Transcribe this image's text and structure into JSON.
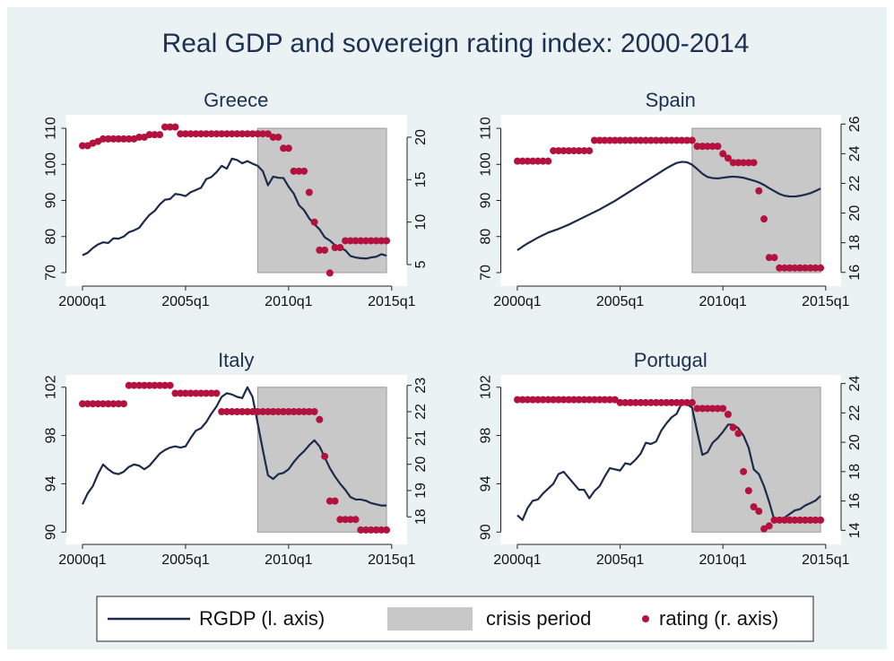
{
  "title": "Real GDP and sovereign rating index: 2000-2014",
  "legend": [
    {
      "name": "RGDP (l. axis)",
      "color": "#1c2b4a"
    },
    {
      "name": "crisis period",
      "color": "#c8c8c8"
    },
    {
      "name": "rating (r. axis)",
      "color": "#b3123f"
    }
  ],
  "chart_data": [
    {
      "type": "line",
      "title": "Greece",
      "x": [
        2000,
        2000.25,
        2000.5,
        2000.75,
        2001,
        2001.25,
        2001.5,
        2001.75,
        2002,
        2002.25,
        2002.5,
        2002.75,
        2003,
        2003.25,
        2003.5,
        2003.75,
        2004,
        2004.25,
        2004.5,
        2004.75,
        2005,
        2005.25,
        2005.5,
        2005.75,
        2006,
        2006.25,
        2006.5,
        2006.75,
        2007,
        2007.25,
        2007.5,
        2007.75,
        2008,
        2008.25,
        2008.5,
        2008.75,
        2009,
        2009.25,
        2009.5,
        2009.75,
        2010,
        2010.25,
        2010.5,
        2010.75,
        2011,
        2011.25,
        2011.5,
        2011.75,
        2012,
        2012.25,
        2012.5,
        2012.75,
        2013,
        2013.25,
        2013.5,
        2013.75,
        2014,
        2014.25,
        2014.5,
        2014.75
      ],
      "series": [
        {
          "values": [
            74.8,
            75.5,
            76.8,
            77.8,
            78.4,
            78.2,
            79.5,
            79.4,
            80.0,
            81.2,
            81.7,
            82.4,
            84.3,
            86.0,
            87.1,
            88.9,
            90.2,
            90.4,
            91.8,
            91.6,
            91.2,
            92.3,
            92.9,
            93.5,
            95.9,
            96.5,
            97.8,
            99.6,
            98.8,
            101.6,
            101.2,
            100.3,
            100.9,
            100.2,
            99.6,
            98.1,
            94.2,
            96.6,
            96.3,
            96.2,
            93.8,
            91.9,
            88.7,
            87.3,
            85.0,
            83.4,
            82.0,
            79.8,
            78.9,
            77.6,
            76.9,
            76.2,
            74.6,
            74.2,
            74.0,
            73.9,
            74.2,
            74.4,
            75.1,
            74.7
          ]
        },
        {
          "type": "scatter",
          "axis": "y2",
          "values": [
            19,
            19,
            19.3,
            19.5,
            19.8,
            19.8,
            19.8,
            19.8,
            19.8,
            19.8,
            19.8,
            20,
            20,
            20.3,
            20.3,
            20.3,
            21.2,
            21.2,
            21.2,
            20.4,
            20.4,
            20.4,
            20.4,
            20.4,
            20.4,
            20.4,
            20.4,
            20.4,
            20.4,
            20.4,
            20.4,
            20.4,
            20.4,
            20.4,
            20.4,
            20.4,
            20.4,
            20,
            20,
            18.7,
            18.7,
            16,
            16,
            16,
            13.5,
            10,
            6.7,
            6.7,
            4,
            7,
            7,
            7.8,
            7.8,
            7.8,
            7.8,
            7.8,
            7.8,
            7.8,
            7.8,
            7.8
          ]
        }
      ],
      "shade": {
        "x": [
          2008.5,
          2014.75
        ],
        "y": [
          70,
          110
        ]
      },
      "xlim": [
        1999.5,
        2015.4
      ],
      "xticks": [
        {
          "value": 2000,
          "label": "2000q1"
        },
        {
          "value": 2005,
          "label": "2005q1"
        },
        {
          "value": 2010,
          "label": "2010q1"
        },
        {
          "value": 2015,
          "label": "2015q1"
        }
      ],
      "ylim": [
        68,
        112
      ],
      "yticks": [
        70,
        80,
        90,
        100,
        110
      ],
      "y2lim": [
        3.2,
        21.9
      ],
      "y2ticks": [
        5,
        10,
        15,
        20
      ]
    },
    {
      "type": "line",
      "title": "Spain",
      "x": [
        2000,
        2000.25,
        2000.5,
        2000.75,
        2001,
        2001.25,
        2001.5,
        2001.75,
        2002,
        2002.25,
        2002.5,
        2002.75,
        2003,
        2003.25,
        2003.5,
        2003.75,
        2004,
        2004.25,
        2004.5,
        2004.75,
        2005,
        2005.25,
        2005.5,
        2005.75,
        2006,
        2006.25,
        2006.5,
        2006.75,
        2007,
        2007.25,
        2007.5,
        2007.75,
        2008,
        2008.25,
        2008.5,
        2008.75,
        2009,
        2009.25,
        2009.5,
        2009.75,
        2010,
        2010.25,
        2010.5,
        2010.75,
        2011,
        2011.25,
        2011.5,
        2011.75,
        2012,
        2012.25,
        2012.5,
        2012.75,
        2013,
        2013.25,
        2013.5,
        2013.75,
        2014,
        2014.25,
        2014.5,
        2014.75
      ],
      "series": [
        {
          "values": [
            76.2,
            77.2,
            78.1,
            78.9,
            79.7,
            80.4,
            81.1,
            81.6,
            82.1,
            82.7,
            83.3,
            84.0,
            84.7,
            85.4,
            86.1,
            86.8,
            87.5,
            88.3,
            89.1,
            89.9,
            90.8,
            91.7,
            92.6,
            93.5,
            94.4,
            95.3,
            96.2,
            97.1,
            98.0,
            98.9,
            99.7,
            100.4,
            100.7,
            100.6,
            99.9,
            98.7,
            97.4,
            96.5,
            96.2,
            96.1,
            96.3,
            96.5,
            96.6,
            96.5,
            96.3,
            95.9,
            95.5,
            95.0,
            94.3,
            93.4,
            92.6,
            91.8,
            91.3,
            91.1,
            91.1,
            91.3,
            91.6,
            92.0,
            92.6,
            93.3
          ]
        },
        {
          "type": "scatter",
          "axis": "y2",
          "values": [
            23.5,
            23.5,
            23.5,
            23.5,
            23.5,
            23.5,
            23.5,
            24.2,
            24.2,
            24.2,
            24.2,
            24.2,
            24.2,
            24.2,
            24.2,
            24.9,
            24.9,
            24.9,
            24.9,
            24.9,
            24.9,
            24.9,
            24.9,
            24.9,
            24.9,
            24.9,
            24.9,
            24.9,
            24.9,
            24.9,
            24.9,
            24.9,
            24.9,
            24.9,
            24.9,
            24.5,
            24.5,
            24.5,
            24.5,
            24.5,
            24.0,
            23.7,
            23.4,
            23.4,
            23.4,
            23.4,
            23.4,
            21.5,
            19.6,
            17,
            17,
            16.3,
            16.3,
            16.3,
            16.3,
            16.3,
            16.3,
            16.3,
            16.3,
            16.3
          ]
        }
      ],
      "shade": {
        "x": [
          2008.5,
          2014.75
        ],
        "y": [
          70,
          110
        ]
      },
      "xlim": [
        1999.5,
        2015.4
      ],
      "xticks": [
        {
          "value": 2000,
          "label": "2000q1"
        },
        {
          "value": 2005,
          "label": "2005q1"
        },
        {
          "value": 2010,
          "label": "2010q1"
        },
        {
          "value": 2015,
          "label": "2015q1"
        }
      ],
      "ylim": [
        68,
        112
      ],
      "yticks": [
        70,
        80,
        90,
        100,
        110
      ],
      "y2lim": [
        15.5,
        26.2
      ],
      "y2ticks": [
        16,
        18,
        20,
        22,
        24,
        26
      ]
    },
    {
      "type": "line",
      "title": "Italy",
      "x": [
        2000,
        2000.25,
        2000.5,
        2000.75,
        2001,
        2001.25,
        2001.5,
        2001.75,
        2002,
        2002.25,
        2002.5,
        2002.75,
        2003,
        2003.25,
        2003.5,
        2003.75,
        2004,
        2004.25,
        2004.5,
        2004.75,
        2005,
        2005.25,
        2005.5,
        2005.75,
        2006,
        2006.25,
        2006.5,
        2006.75,
        2007,
        2007.25,
        2007.5,
        2007.75,
        2008,
        2008.25,
        2008.5,
        2008.75,
        2009,
        2009.25,
        2009.5,
        2009.75,
        2010,
        2010.25,
        2010.5,
        2010.75,
        2011,
        2011.25,
        2011.5,
        2011.75,
        2012,
        2012.25,
        2012.5,
        2012.75,
        2013,
        2013.25,
        2013.5,
        2013.75,
        2014,
        2014.25,
        2014.5,
        2014.75
      ],
      "series": [
        {
          "values": [
            92.3,
            93.2,
            93.8,
            94.8,
            95.6,
            95.2,
            94.9,
            94.8,
            95.0,
            95.4,
            95.6,
            95.5,
            95.2,
            95.5,
            96.0,
            96.5,
            96.8,
            97.0,
            97.1,
            97.0,
            97.1,
            97.8,
            98.4,
            98.6,
            99.1,
            99.8,
            100.4,
            101.2,
            101.5,
            101.4,
            101.2,
            101.1,
            102.0,
            101.2,
            99.0,
            96.8,
            94.7,
            94.4,
            94.8,
            94.9,
            95.2,
            95.8,
            96.3,
            96.7,
            97.2,
            97.6,
            97.1,
            96.2,
            95.3,
            94.6,
            94.0,
            93.5,
            92.9,
            92.7,
            92.7,
            92.6,
            92.4,
            92.3,
            92.2,
            92.2
          ]
        },
        {
          "type": "scatter",
          "axis": "y2",
          "values": [
            22.3,
            22.3,
            22.3,
            22.3,
            22.3,
            22.3,
            22.3,
            22.3,
            22.3,
            23,
            23,
            23,
            23,
            23,
            23,
            23,
            23,
            23,
            22.7,
            22.7,
            22.7,
            22.7,
            22.7,
            22.7,
            22.7,
            22.7,
            22.7,
            22,
            22,
            22,
            22,
            22,
            22,
            22,
            22,
            22,
            22,
            22,
            22,
            22,
            22,
            22,
            22,
            22,
            22,
            22,
            21.7,
            20.3,
            18.6,
            18.6,
            17.9,
            17.9,
            17.9,
            17.9,
            17.5,
            17.5,
            17.5,
            17.5,
            17.5,
            17.5
          ]
        }
      ],
      "shade": {
        "x": [
          2008.5,
          2014.75
        ],
        "y": [
          90,
          102
        ]
      },
      "xlim": [
        1999.5,
        2015.4
      ],
      "xticks": [
        {
          "value": 2000,
          "label": "2000q1"
        },
        {
          "value": 2005,
          "label": "2005q1"
        },
        {
          "value": 2010,
          "label": "2010q1"
        },
        {
          "value": 2015,
          "label": "2015q1"
        }
      ],
      "ylim": [
        89.5,
        102.5
      ],
      "yticks": [
        90,
        94,
        98,
        102
      ],
      "y2lim": [
        17.19,
        23.16
      ],
      "y2ticks": [
        18,
        19,
        20,
        21,
        22,
        23
      ]
    },
    {
      "type": "line",
      "title": "Portugal",
      "x": [
        2000,
        2000.25,
        2000.5,
        2000.75,
        2001,
        2001.25,
        2001.5,
        2001.75,
        2002,
        2002.25,
        2002.5,
        2002.75,
        2003,
        2003.25,
        2003.5,
        2003.75,
        2004,
        2004.25,
        2004.5,
        2004.75,
        2005,
        2005.25,
        2005.5,
        2005.75,
        2006,
        2006.25,
        2006.5,
        2006.75,
        2007,
        2007.25,
        2007.5,
        2007.75,
        2008,
        2008.25,
        2008.5,
        2008.75,
        2009,
        2009.25,
        2009.5,
        2009.75,
        2010,
        2010.25,
        2010.5,
        2010.75,
        2011,
        2011.25,
        2011.5,
        2011.75,
        2012,
        2012.25,
        2012.5,
        2012.75,
        2013,
        2013.25,
        2013.5,
        2013.75,
        2014,
        2014.25,
        2014.5,
        2014.75
      ],
      "series": [
        {
          "values": [
            91.4,
            91.0,
            92.0,
            92.6,
            92.7,
            93.2,
            93.6,
            94.0,
            94.8,
            95.0,
            94.5,
            94.0,
            93.5,
            93.5,
            92.8,
            93.4,
            93.8,
            94.6,
            95.3,
            95.2,
            95.1,
            95.7,
            95.6,
            96.0,
            96.5,
            97.4,
            97.3,
            97.5,
            98.4,
            99.0,
            99.5,
            99.8,
            100.7,
            100.6,
            100.3,
            98.3,
            96.4,
            96.6,
            97.4,
            97.8,
            98.3,
            98.9,
            98.9,
            98.6,
            98.0,
            97.0,
            95.2,
            94.8,
            93.8,
            92.5,
            91.0,
            91.1,
            91.2,
            91.5,
            91.8,
            91.9,
            92.2,
            92.4,
            92.6,
            93.0
          ]
        },
        {
          "type": "scatter",
          "axis": "y2",
          "values": [
            22.9,
            22.9,
            22.9,
            22.9,
            22.9,
            22.9,
            22.9,
            22.9,
            22.9,
            22.9,
            22.9,
            22.9,
            22.9,
            22.9,
            22.9,
            22.9,
            22.9,
            22.9,
            22.9,
            22.9,
            22.7,
            22.7,
            22.7,
            22.7,
            22.7,
            22.7,
            22.7,
            22.7,
            22.7,
            22.7,
            22.7,
            22.7,
            22.7,
            22.7,
            22.7,
            22.3,
            22.3,
            22.3,
            22.3,
            22.3,
            22.3,
            21.9,
            21.0,
            20.6,
            18.0,
            16.7,
            15.6,
            15.3,
            14.1,
            14.3,
            14.7,
            14.7,
            14.7,
            14.7,
            14.7,
            14.7,
            14.7,
            14.7,
            14.7,
            14.7
          ]
        }
      ],
      "shade": {
        "x": [
          2008.5,
          2014.75
        ],
        "y": [
          90,
          102
        ]
      },
      "xlim": [
        1999.5,
        2015.4
      ],
      "xticks": [
        {
          "value": 2000,
          "label": "2000q1"
        },
        {
          "value": 2005,
          "label": "2005q1"
        },
        {
          "value": 2010,
          "label": "2010q1"
        },
        {
          "value": 2015,
          "label": "2015q1"
        }
      ],
      "ylim": [
        89.5,
        102.5
      ],
      "yticks": [
        90,
        94,
        98,
        102
      ],
      "y2lim": [
        13.47,
        24.16
      ],
      "y2ticks": [
        14,
        16,
        18,
        20,
        22,
        24
      ]
    }
  ]
}
